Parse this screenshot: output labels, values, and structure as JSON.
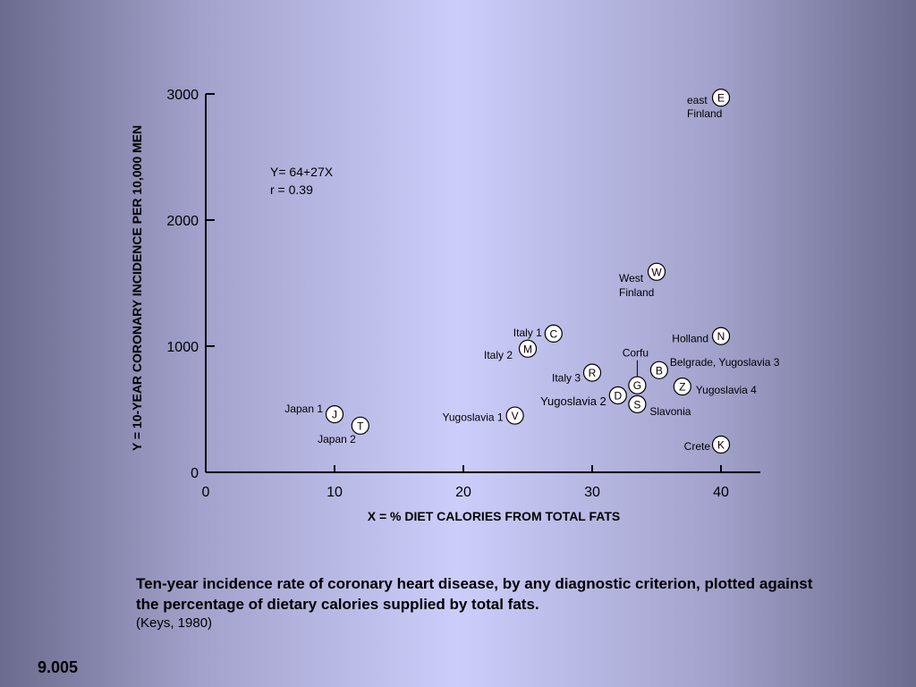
{
  "caption": {
    "text": "Ten-year incidence rate of coronary heart disease, by any diagnostic criterion, plotted against the percentage of dietary calories supplied by total fats.",
    "source": "(Keys, 1980)"
  },
  "slide_number": "9.005",
  "chart_data": {
    "type": "scatter",
    "title": "",
    "xlabel": "X = % DIET CALORIES FROM TOTAL FATS",
    "ylabel": "Y = 10-YEAR CORONARY INCIDENCE PER 10,000 MEN",
    "xlim": [
      0,
      43
    ],
    "ylim": [
      0,
      3000
    ],
    "xticks": [
      0,
      10,
      20,
      30,
      40
    ],
    "yticks": [
      0,
      1000,
      2000,
      3000
    ],
    "grid": false,
    "annotation": [
      "Y= 64+27X",
      "r = 0.39"
    ],
    "points": [
      {
        "code": "E",
        "label": "east\nFinland",
        "x": 40,
        "y": 2970
      },
      {
        "code": "W",
        "label": "West\nFinland",
        "x": 35,
        "y": 1590
      },
      {
        "code": "C",
        "label": "Italy 1",
        "x": 27,
        "y": 1100
      },
      {
        "code": "M",
        "label": "Italy 2",
        "x": 25,
        "y": 980
      },
      {
        "code": "R",
        "label": "Italy 3",
        "x": 30,
        "y": 790
      },
      {
        "code": "N",
        "label": "Holland",
        "x": 40,
        "y": 1080
      },
      {
        "code": "B",
        "label": "Belgrade, Yugoslavia 3",
        "x": 35.2,
        "y": 810
      },
      {
        "code": "G",
        "label": "Corfu",
        "x": 33.5,
        "y": 690
      },
      {
        "code": "Z",
        "label": "Yugoslavia 4",
        "x": 37,
        "y": 680
      },
      {
        "code": "D",
        "label": "Yugoslavia 2",
        "x": 32,
        "y": 610
      },
      {
        "code": "S",
        "label": "Slavonia",
        "x": 33.5,
        "y": 540
      },
      {
        "code": "V",
        "label": "Yugoslavia 1",
        "x": 24,
        "y": 450
      },
      {
        "code": "J",
        "label": "Japan 1",
        "x": 10,
        "y": 460
      },
      {
        "code": "T",
        "label": "Japan 2",
        "x": 12,
        "y": 370
      },
      {
        "code": "K",
        "label": "Crete",
        "x": 40,
        "y": 220
      }
    ]
  }
}
